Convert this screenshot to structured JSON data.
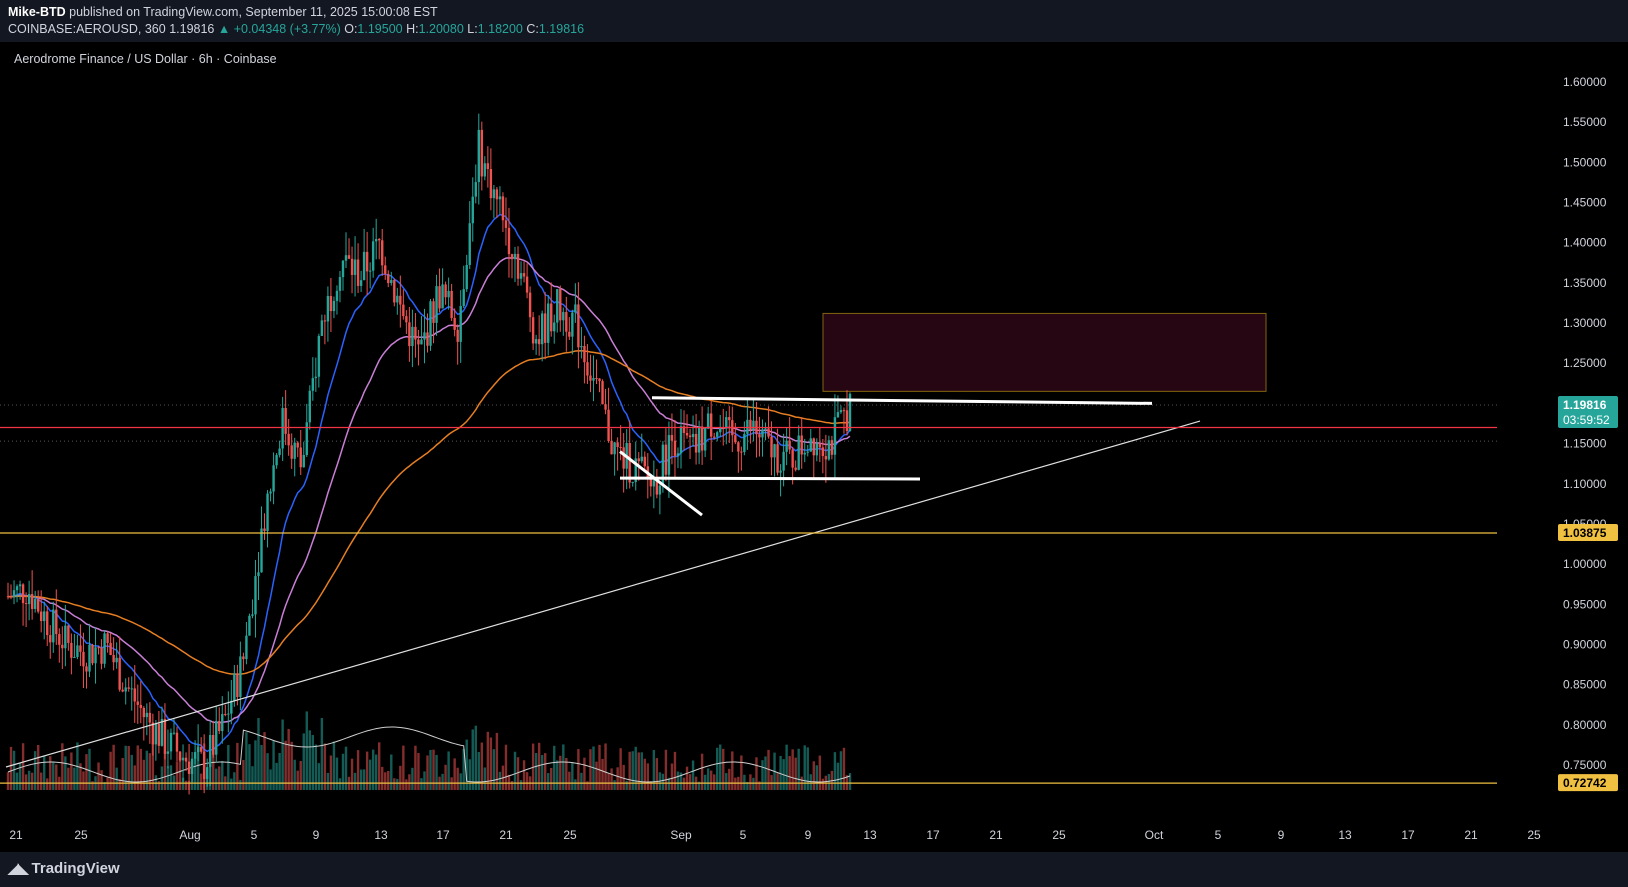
{
  "header": {
    "author": "Mike-BTD",
    "published_text": "published on TradingView.com, September 11, 2025 15:00:08 EST",
    "symbol": "COINBASE:AEROUSD, 360",
    "last": "1.19816",
    "change": "▲ +0.04348 (+3.77%)",
    "o_label": "O:",
    "o_value": "1.19500",
    "h_label": "H:",
    "h_value": "1.20080",
    "l_label": "L:",
    "l_value": "1.18200",
    "c_label": "C:",
    "c_value": "1.19816"
  },
  "footer": {
    "brand": "TradingView"
  },
  "chart_data": {
    "type": "candlestick",
    "title": "Aerodrome Finance / US Dollar · 6h · Coinbase",
    "ylim": [
      0.72,
      1.62
    ],
    "y_ticks": [
      "1.60000",
      "1.55000",
      "1.50000",
      "1.45000",
      "1.40000",
      "1.35000",
      "1.30000",
      "1.25000",
      "1.20000",
      "1.15000",
      "1.10000",
      "1.05000",
      "1.00000",
      "0.95000",
      "0.90000",
      "0.85000",
      "0.80000",
      "0.75000"
    ],
    "x_ticks": [
      "21",
      "25",
      "Aug",
      "5",
      "9",
      "13",
      "17",
      "21",
      "25",
      "Sep",
      "5",
      "9",
      "13",
      "17",
      "21",
      "25",
      "Oct",
      "5",
      "9",
      "13",
      "17",
      "21",
      "25"
    ],
    "current_price_label": "1.19816",
    "countdown_label": "03:59:52",
    "support_label": "1.03875",
    "low_label": "0.72742",
    "horizontal_lines": [
      {
        "price": 1.03875,
        "color": "#f0c040"
      },
      {
        "price": 1.17,
        "color": "#f23645"
      },
      {
        "price": 0.7274,
        "color": "#f0c040"
      }
    ],
    "series": [
      {
        "kind": "close",
        "points": [
          [
            0,
            0.96
          ],
          [
            3,
            0.97
          ],
          [
            6,
            0.93
          ],
          [
            9,
            0.9
          ],
          [
            12,
            0.89
          ],
          [
            15,
            0.9
          ],
          [
            18,
            0.85
          ],
          [
            21,
            0.81
          ],
          [
            24,
            0.78
          ],
          [
            27,
            0.76
          ],
          [
            30,
            0.75
          ],
          [
            33,
            0.8
          ],
          [
            36,
            0.88
          ],
          [
            39,
            1.05
          ],
          [
            42,
            1.18
          ],
          [
            45,
            1.12
          ],
          [
            48,
            1.3
          ],
          [
            51,
            1.38
          ],
          [
            54,
            1.36
          ],
          [
            57,
            1.4
          ],
          [
            60,
            1.32
          ],
          [
            63,
            1.26
          ],
          [
            66,
            1.34
          ],
          [
            69,
            1.3
          ],
          [
            72,
            1.52
          ],
          [
            75,
            1.45
          ],
          [
            78,
            1.38
          ],
          [
            81,
            1.28
          ],
          [
            84,
            1.32
          ],
          [
            87,
            1.3
          ],
          [
            90,
            1.22
          ],
          [
            93,
            1.14
          ],
          [
            96,
            1.12
          ],
          [
            99,
            1.1
          ],
          [
            102,
            1.16
          ],
          [
            105,
            1.14
          ],
          [
            108,
            1.18
          ],
          [
            111,
            1.15
          ],
          [
            114,
            1.17
          ],
          [
            117,
            1.14
          ],
          [
            120,
            1.13
          ],
          [
            123,
            1.16
          ],
          [
            126,
            1.15
          ],
          [
            129,
            1.198
          ]
        ]
      },
      {
        "kind": "ema_fast",
        "color": "#2962ff"
      },
      {
        "kind": "ema_mid",
        "color": "#c97fd6"
      },
      {
        "kind": "ema_slow",
        "color": "#e67e22"
      }
    ]
  }
}
